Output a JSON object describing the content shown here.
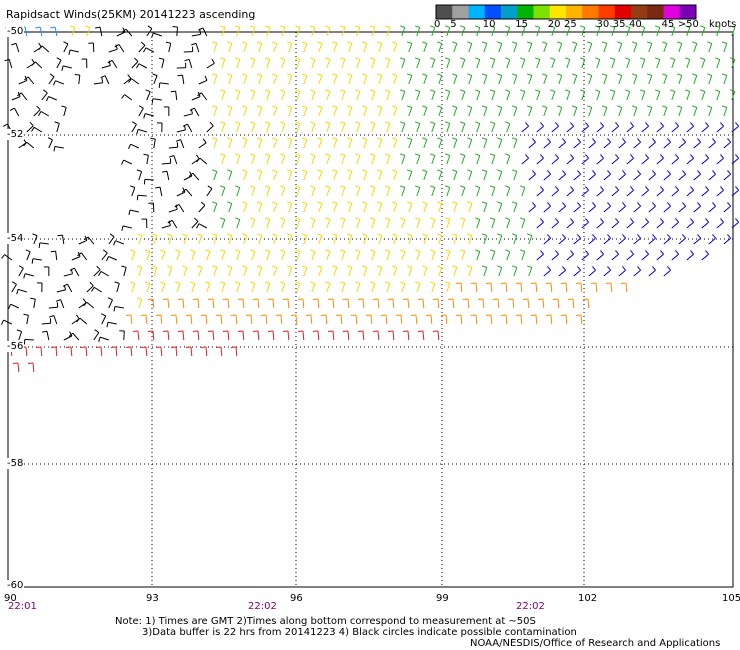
{
  "title": "Rapidsact Winds(25KM) 20141223 ascending",
  "legend": {
    "unit_label": "knots",
    "bins": [
      {
        "label": "0",
        "color": "#505050"
      },
      {
        "label": "5",
        "color": "#a0a0a0"
      },
      {
        "label": "",
        "color": "#00b4ff"
      },
      {
        "label": "10",
        "color": "#0050ff"
      },
      {
        "label": "",
        "color": "#00a0c8"
      },
      {
        "label": "15",
        "color": "#00b400"
      },
      {
        "label": "",
        "color": "#80e000"
      },
      {
        "label": "20",
        "color": "#ffe600"
      },
      {
        "label": "25",
        "color": "#ffb400"
      },
      {
        "label": "",
        "color": "#ff7800"
      },
      {
        "label": "30",
        "color": "#ff3c00"
      },
      {
        "label": "35",
        "color": "#e00000"
      },
      {
        "label": "40",
        "color": "#963c14"
      },
      {
        "label": "",
        "color": "#7a2a10"
      },
      {
        "label": "45",
        "color": "#e000e0"
      },
      {
        "label": ">50",
        "color": "#7a00b4"
      }
    ]
  },
  "axes": {
    "lat_labels": [
      "-50",
      "-52",
      "-54",
      "-56",
      "-58",
      "-60"
    ],
    "lon_labels": [
      "90",
      "93",
      "96",
      "99",
      "102",
      "105"
    ],
    "lat_range": [
      -60,
      -50
    ],
    "lon_range": [
      90,
      105
    ],
    "grid": true
  },
  "times": [
    "22:01",
    "22:02",
    "22:02"
  ],
  "notes": [
    "Note: 1) Times are GMT 2)Times along bottom correspond to measurement at ~50S",
    "3)Data buffer is 22 hrs from 20141223 4) Black circles indicate possible contamination",
    "NOAA/NESDIS/Office of Research and Applications"
  ],
  "colors": {
    "low_wind": "#1e90ff",
    "calm_blue": "#0000e0",
    "green": "#22aa22",
    "yellow": "#ffd400",
    "orange": "#ff8c00",
    "red": "#e02020",
    "flagged": "#000000",
    "time_text": "#800080"
  }
}
